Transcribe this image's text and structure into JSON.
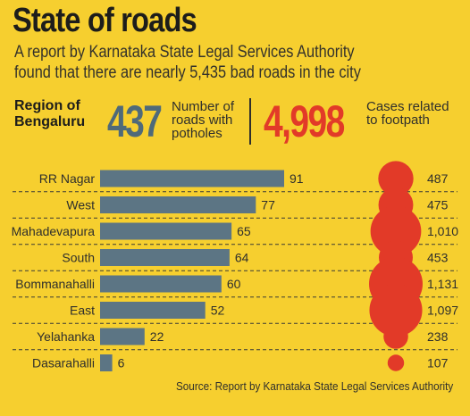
{
  "title": "State of roads",
  "subtitle_line1": "A report by Karnataka State Legal Services Authority",
  "subtitle_line2": "found that there are nearly 5,435 bad roads in the city",
  "region_label_line1": "Region of",
  "region_label_line2": "Bengaluru",
  "pothole_total": "437",
  "pothole_label_line1": "Number of",
  "pothole_label_line2": "roads with",
  "pothole_label_line3": "potholes",
  "footpath_total": "4,998",
  "footpath_label_line1": "Cases related",
  "footpath_label_line2": "to footpath",
  "source": "Source: Report by Karnataka State Legal Services Authority",
  "colors": {
    "background": "#f6cf2f",
    "bar": "#5c7584",
    "bubble": "#e23a28",
    "pothole_total": "#4f6a79",
    "footpath_total": "#e23a28"
  },
  "chart_data": {
    "type": "bar",
    "categories": [
      "RR Nagar",
      "West",
      "Mahadevapura",
      "South",
      "Bommanahalli",
      "East",
      "Yelahanka",
      "Dasarahalli"
    ],
    "series": [
      {
        "values": [
          91,
          77,
          65,
          64,
          60,
          52,
          22,
          6
        ]
      },
      {
        "values": [
          487,
          475,
          1010,
          453,
          1131,
          1097,
          238,
          107
        ]
      }
    ],
    "value_labels_bars": [
      "91",
      "77",
      "65",
      "64",
      "60",
      "52",
      "22",
      "6"
    ],
    "value_labels_bubbles": [
      "487",
      "475",
      "1,010",
      "453",
      "1,131",
      "1,097",
      "238",
      "107"
    ],
    "orientation": "horizontal",
    "grid": false
  }
}
